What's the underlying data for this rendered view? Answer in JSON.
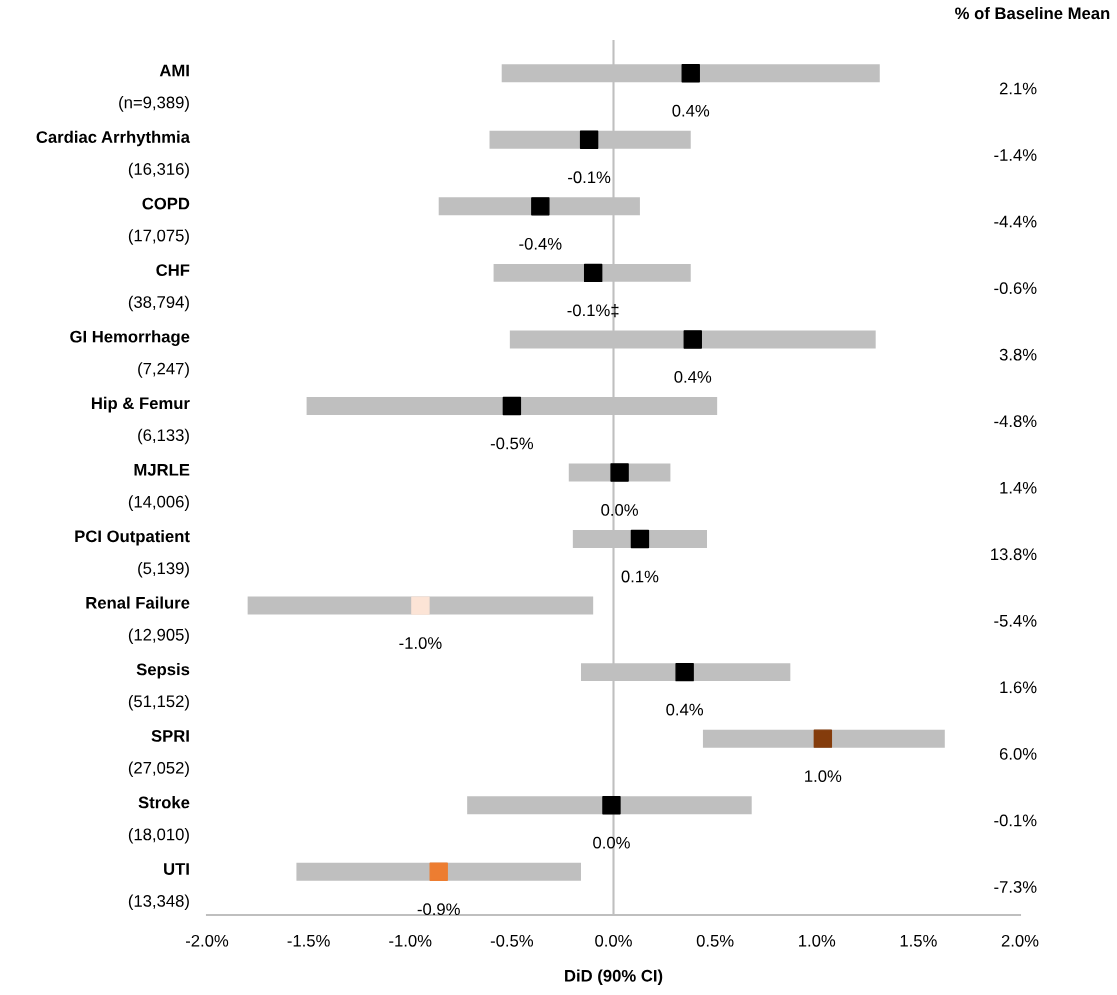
{
  "chart_data": {
    "type": "bar",
    "orientation": "horizontal",
    "xlabel": "DiD (90% CI)",
    "categories": [
      "AMI\n(n=9,389)",
      "Cardiac Arrhythmia\n(16,316)",
      "COPD\n(17,075)",
      "CHF\n(38,794)",
      "GI Hemorrhage\n(7,247)",
      "Hip & Femur\n(6,133)",
      "MJRLE\n(14,006)",
      "PCI Outpatient\n(5,139)",
      "Renal Failure\n(12,905)",
      "Sepsis\n(51,152)",
      "SPRI\n(27,052)",
      "Stroke\n(18,010)",
      "UTI\n(13,348)"
    ],
    "series": [
      {
        "color": "#bfbfbf",
        "base": [
          -0.55,
          -0.61,
          -0.86,
          -0.59,
          -0.51,
          -1.51,
          -0.22,
          -0.2,
          -1.8,
          -0.16,
          0.44,
          -0.72,
          -1.56
        ],
        "values": [
          1.86,
          0.99,
          0.99,
          0.97,
          1.8,
          2.02,
          0.5,
          0.66,
          1.7,
          1.03,
          1.19,
          1.4,
          1.4
        ]
      },
      {
        "type": "scatter",
        "marker": "square",
        "values": [
          0.38,
          -0.12,
          -0.36,
          -0.1,
          0.39,
          -0.5,
          0.03,
          0.13,
          -0.95,
          0.35,
          1.03,
          -0.01,
          -0.86
        ],
        "colors": [
          "#000000",
          "#000000",
          "#000000",
          "#000000",
          "#000000",
          "#000000",
          "#000000",
          "#000000",
          "#fce4d6",
          "#000000",
          "#843c0c",
          "#000000",
          "#ed7d31"
        ],
        "value_labels": [
          "0.4%",
          "-0.1%",
          "-0.4%",
          "-0.1%‡",
          "0.4%",
          "-0.5%",
          "0.0%",
          "0.1%",
          "-1.0%",
          "0.4%",
          "1.0%",
          "0.0%",
          "-0.9%"
        ]
      }
    ],
    "xlim": [
      -2.0,
      2.0
    ],
    "xticks": [
      {
        "value": -2.0,
        "label": "-2.0%"
      },
      {
        "value": -1.5,
        "label": "-1.5%"
      },
      {
        "value": -1.0,
        "label": "-1.0%"
      },
      {
        "value": -0.5,
        "label": "-0.5%"
      },
      {
        "value": 0.0,
        "label": "0.0%"
      },
      {
        "value": 0.5,
        "label": "0.5%"
      },
      {
        "value": 1.0,
        "label": "1.0%"
      },
      {
        "value": 1.5,
        "label": "1.5%"
      },
      {
        "value": 2.0,
        "label": "2.0%"
      }
    ],
    "ref_lines": [
      {
        "axis": "x",
        "value": 0,
        "color": "#bfbfbf"
      }
    ],
    "annotations": [
      "% of Baseline Mean",
      "2.1%",
      "-1.4%",
      "-4.4%",
      "-0.6%",
      "3.8%",
      "-4.8%",
      "1.4%",
      "13.8%",
      "-5.4%",
      "1.6%",
      "6.0%",
      "-0.1%",
      "-7.3%"
    ],
    "grid": false
  }
}
